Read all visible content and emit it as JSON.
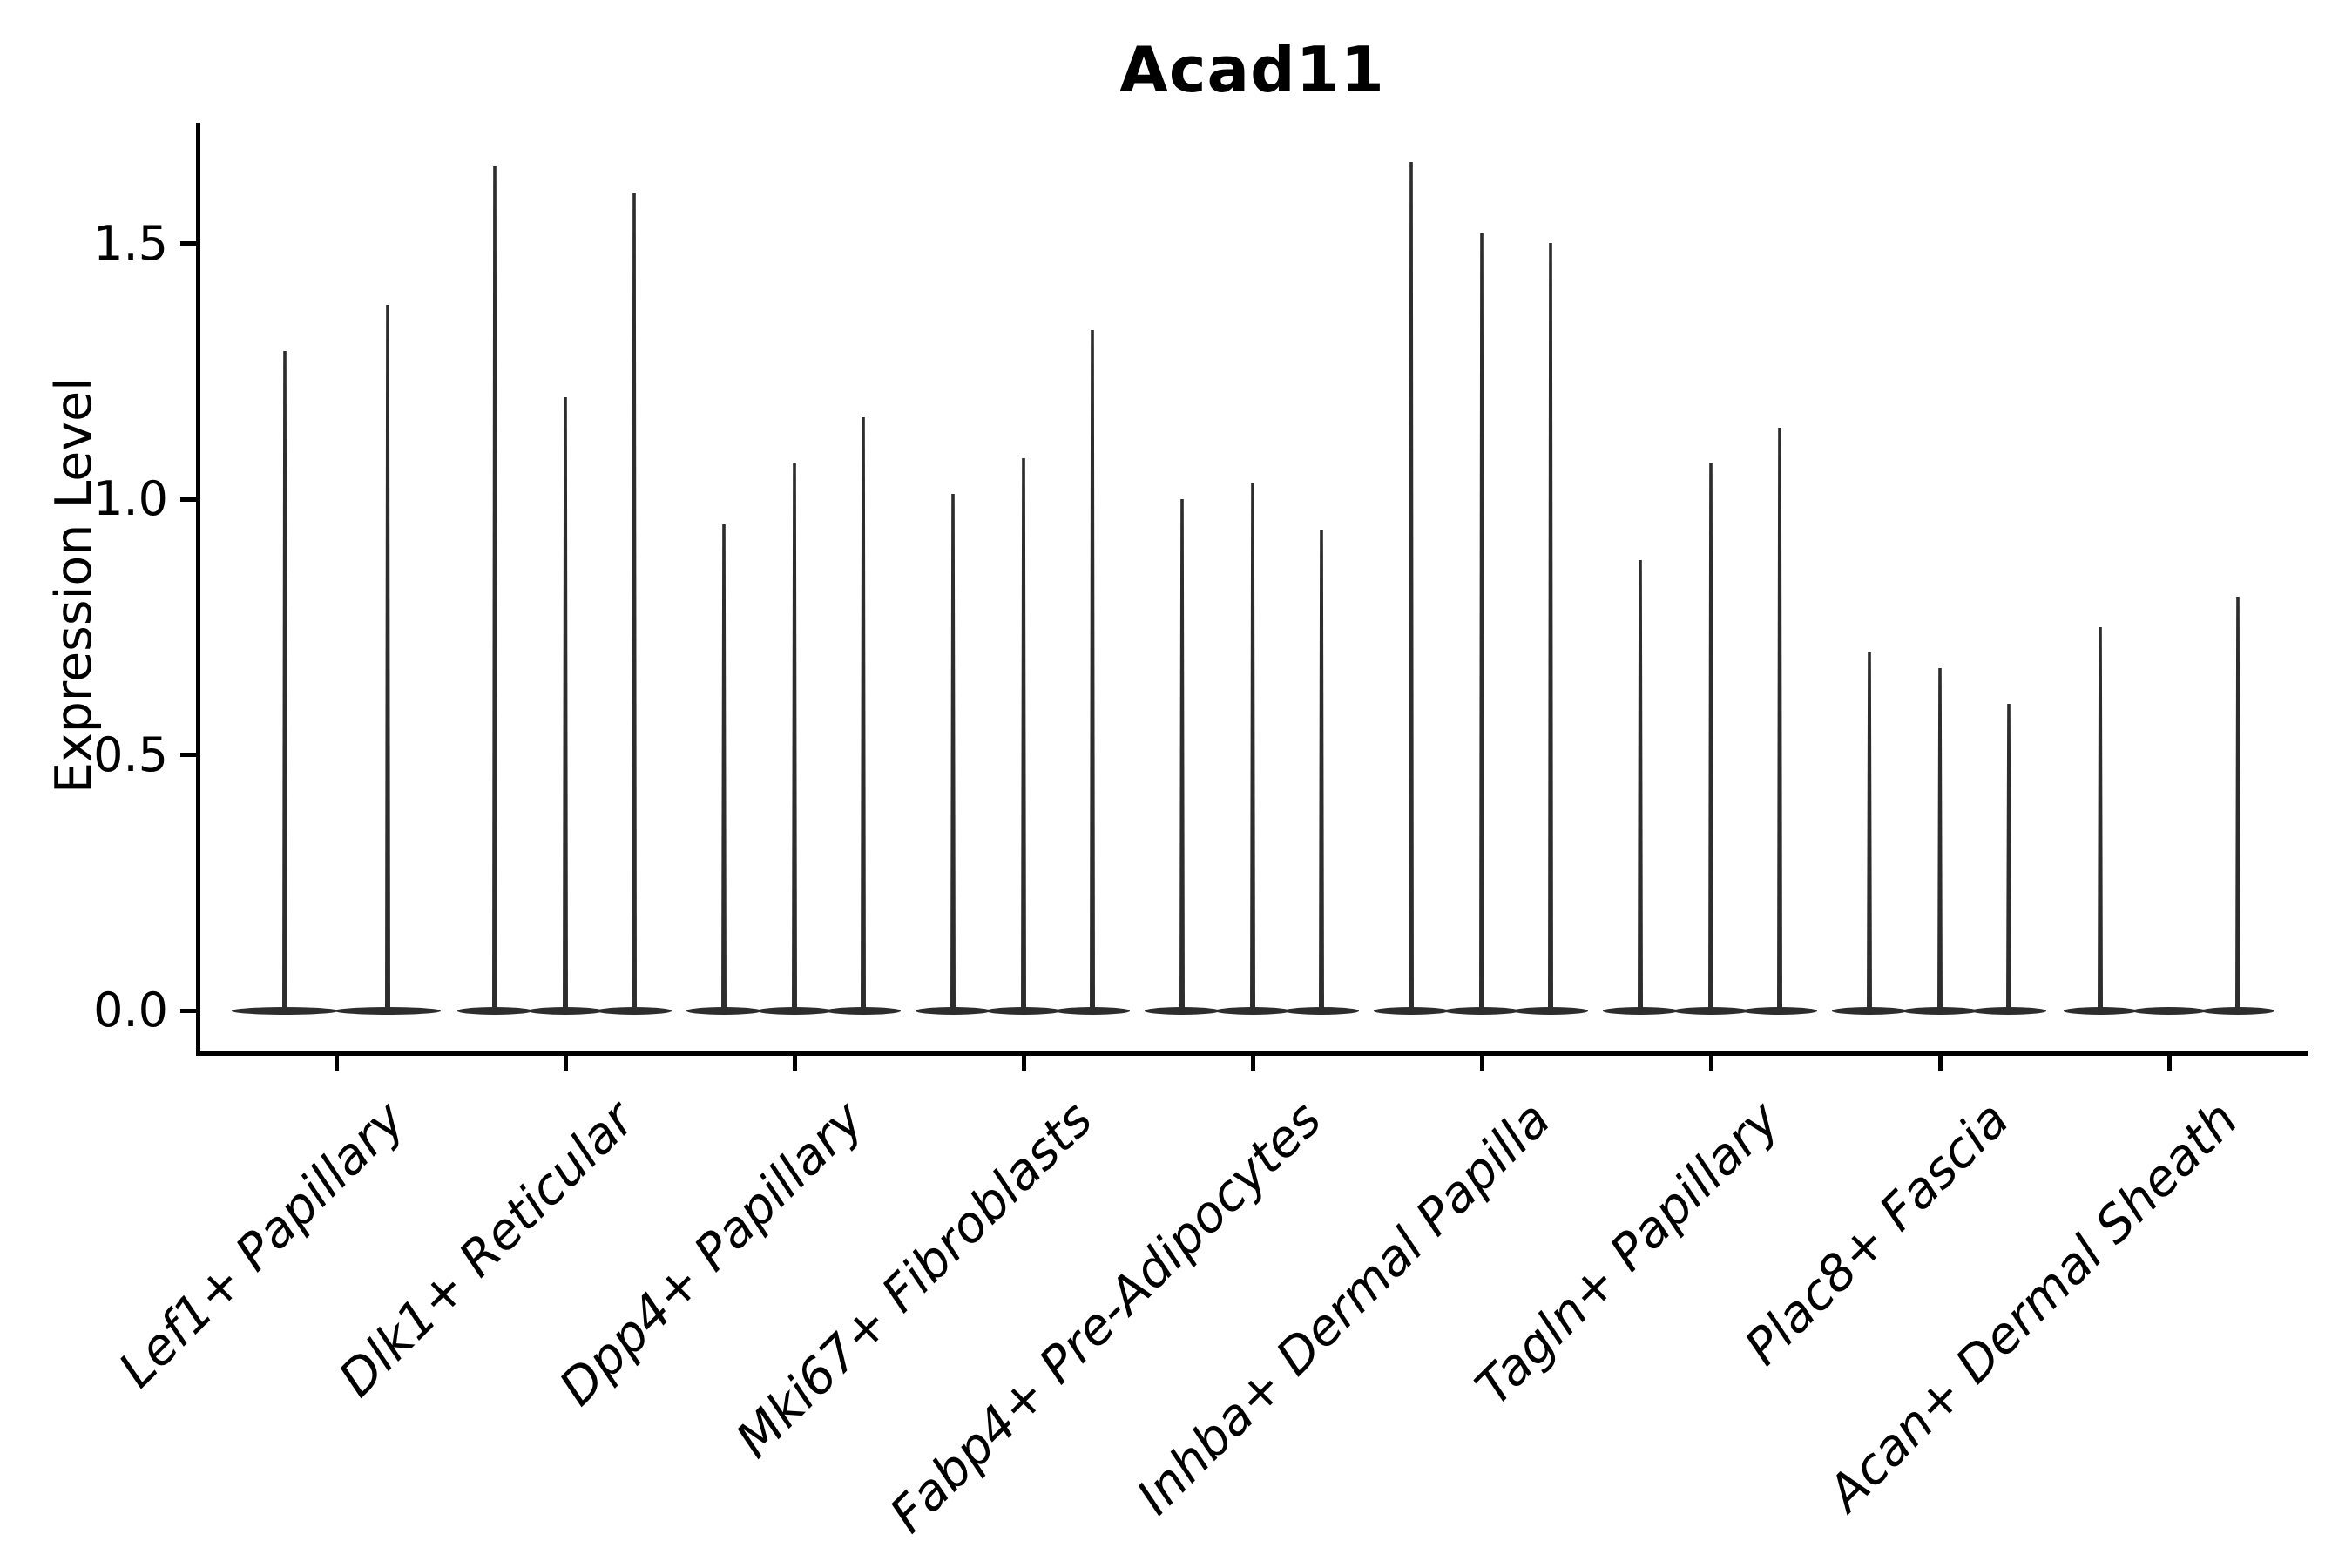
{
  "chart_data": {
    "type": "violin",
    "title": "Acad11",
    "ylabel": "Expression Level",
    "xlabel": "",
    "ylim": [
      -0.08,
      1.73
    ],
    "yticks": [
      0.0,
      0.5,
      1.0,
      1.5
    ],
    "grid": false,
    "legend": "none",
    "description": "Violin plot of Acad11 expression; violins are extremely thin (most cells at 0) so each appears as a flat base at 0 with a thin vertical tail up to its maximum.",
    "categories": [
      "Lef1+ Papillary",
      "Dlk1+ Reticular",
      "Dpp4+ Papillary",
      "Mki67+ Fibroblasts",
      "Fabp4+ Pre-Adipocytes",
      "Inhba+ Dermal Papilla",
      "Tagln+ Papillary",
      "Plac8+ Fascia",
      "Acan+ Dermal Sheath"
    ],
    "groups": [
      {
        "category": "Lef1+ Papillary",
        "violins": [
          {
            "dx": -59,
            "w": 122,
            "max": 1.29
          },
          {
            "dx": 59,
            "w": 122,
            "max": 1.38
          }
        ]
      },
      {
        "category": "Dlk1+ Reticular",
        "violins": [
          {
            "dx": -81,
            "w": 86,
            "max": 1.65
          },
          {
            "dx": 0,
            "w": 86,
            "max": 1.2
          },
          {
            "dx": 79,
            "w": 86,
            "max": 1.6
          }
        ]
      },
      {
        "category": "Dpp4+ Papillary",
        "violins": [
          {
            "dx": -81,
            "w": 86,
            "max": 0.95
          },
          {
            "dx": 0,
            "w": 86,
            "max": 1.07
          },
          {
            "dx": 79,
            "w": 86,
            "max": 1.16
          }
        ]
      },
      {
        "category": "Mki67+ Fibroblasts",
        "violins": [
          {
            "dx": -81,
            "w": 86,
            "max": 1.01
          },
          {
            "dx": 0,
            "w": 86,
            "max": 1.08
          },
          {
            "dx": 79,
            "w": 86,
            "max": 1.33
          }
        ]
      },
      {
        "category": "Fabp4+ Pre-Adipocytes",
        "violins": [
          {
            "dx": -81,
            "w": 86,
            "max": 1.0
          },
          {
            "dx": 0,
            "w": 86,
            "max": 1.03
          },
          {
            "dx": 79,
            "w": 86,
            "max": 0.94
          }
        ]
      },
      {
        "category": "Inhba+ Dermal Papilla",
        "violins": [
          {
            "dx": -81,
            "w": 86,
            "max": 1.66
          },
          {
            "dx": 0,
            "w": 86,
            "max": 1.52
          },
          {
            "dx": 79,
            "w": 86,
            "max": 1.5
          }
        ]
      },
      {
        "category": "Tagln+ Papillary",
        "violins": [
          {
            "dx": -81,
            "w": 86,
            "max": 0.88
          },
          {
            "dx": 0,
            "w": 86,
            "max": 1.07
          },
          {
            "dx": 79,
            "w": 86,
            "max": 1.14
          }
        ]
      },
      {
        "category": "Plac8+ Fascia",
        "violins": [
          {
            "dx": -81,
            "w": 86,
            "max": 0.7
          },
          {
            "dx": 0,
            "w": 86,
            "max": 0.67
          },
          {
            "dx": 79,
            "w": 86,
            "max": 0.6
          }
        ]
      },
      {
        "category": "Acan+ Dermal Sheath",
        "violins": [
          {
            "dx": -79,
            "w": 84,
            "max": 0.75
          },
          {
            "dx": 0,
            "w": 84,
            "max": 0.0
          },
          {
            "dx": 79,
            "w": 84,
            "max": 0.81
          }
        ]
      }
    ]
  },
  "colors": {
    "violin": "#2d2d2d",
    "axis": "#000000",
    "text": "#000000",
    "background": "#ffffff"
  }
}
